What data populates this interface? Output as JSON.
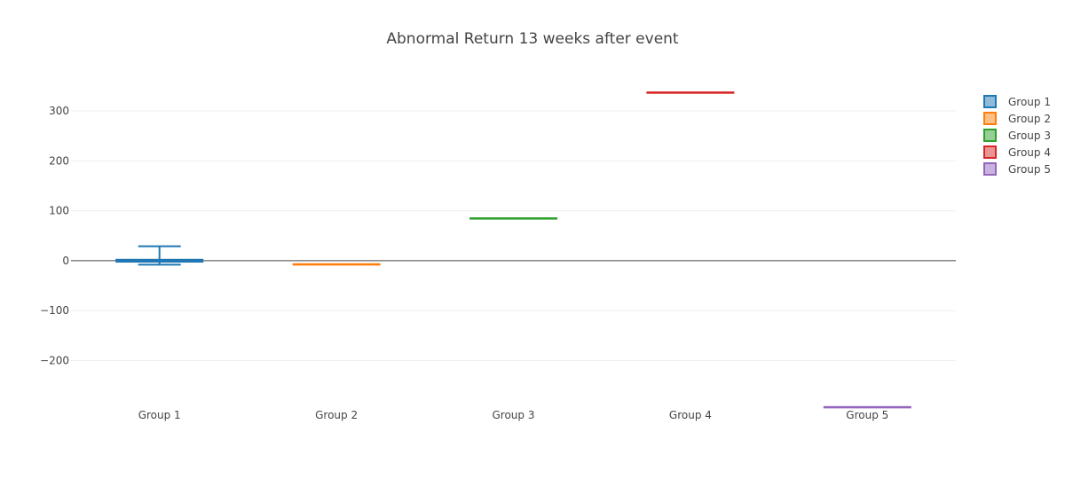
{
  "chart_data": {
    "type": "box",
    "title": "Abnormal Return 13 weeks after event",
    "xlabel": "",
    "ylabel": "",
    "categories": [
      "Group 1",
      "Group 2",
      "Group 3",
      "Group 4",
      "Group 5"
    ],
    "ylim": [
      -295,
      380
    ],
    "yticks": [
      300,
      200,
      100,
      0,
      -100,
      -200
    ],
    "ytick_labels": [
      "300",
      "200",
      "100",
      "0",
      "−100",
      "−200"
    ],
    "grid": true,
    "legend_position": "top-right",
    "series": [
      {
        "name": "Group 1",
        "color": "#1f77b4",
        "min": -8,
        "q1": -2,
        "median": 0,
        "q3": 2,
        "max": 29
      },
      {
        "name": "Group 2",
        "color": "#ff7f0e",
        "min": -7,
        "q1": -7,
        "median": -7,
        "q3": -7,
        "max": -7
      },
      {
        "name": "Group 3",
        "color": "#2ca02c",
        "min": 85,
        "q1": 85,
        "median": 85,
        "q3": 85,
        "max": 85
      },
      {
        "name": "Group 4",
        "color": "#d62728",
        "min": 337,
        "q1": 337,
        "median": 337,
        "q3": 337,
        "max": 337
      },
      {
        "name": "Group 5",
        "color": "#9467bd",
        "min": -293,
        "q1": -293,
        "median": -293,
        "q3": -293,
        "max": -293
      }
    ]
  }
}
